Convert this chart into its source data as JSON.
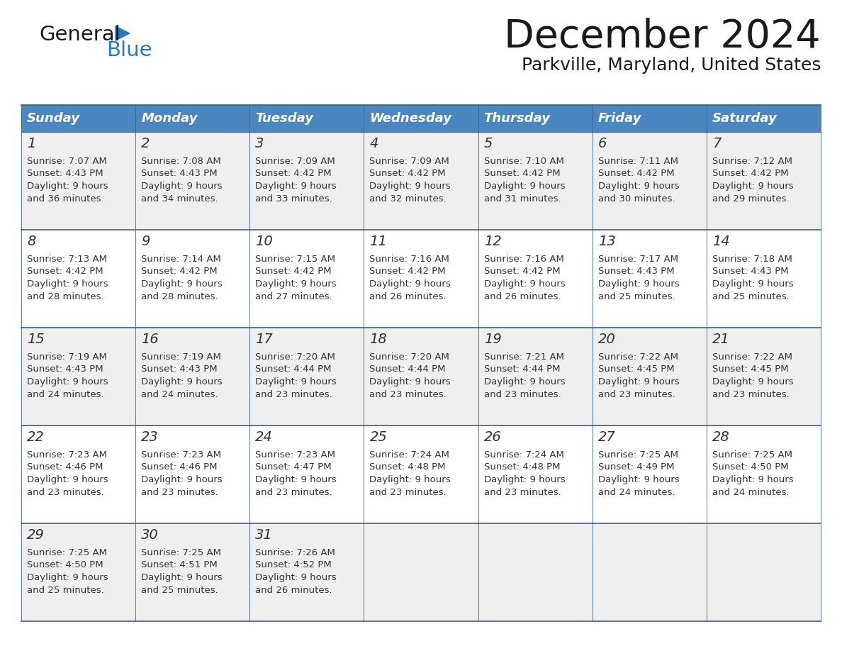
{
  "title": "December 2024",
  "subtitle": "Parkville, Maryland, United States",
  "days_of_week": [
    "Sunday",
    "Monday",
    "Tuesday",
    "Wednesday",
    "Thursday",
    "Friday",
    "Saturday"
  ],
  "header_bg": "#4a86c0",
  "header_text_color": "#FFFFFF",
  "cell_bg_odd_row": "#EFEFEF",
  "cell_bg_even_row": "#FFFFFF",
  "grid_line_color": "#3a6090",
  "text_color": "#333333",
  "title_color": "#1a1a1a",
  "calendar_data": [
    [
      {
        "day": 1,
        "sunrise": "7:07 AM",
        "sunset": "4:43 PM",
        "daylight1": "9 hours",
        "daylight2": "and 36 minutes."
      },
      {
        "day": 2,
        "sunrise": "7:08 AM",
        "sunset": "4:43 PM",
        "daylight1": "9 hours",
        "daylight2": "and 34 minutes."
      },
      {
        "day": 3,
        "sunrise": "7:09 AM",
        "sunset": "4:42 PM",
        "daylight1": "9 hours",
        "daylight2": "and 33 minutes."
      },
      {
        "day": 4,
        "sunrise": "7:09 AM",
        "sunset": "4:42 PM",
        "daylight1": "9 hours",
        "daylight2": "and 32 minutes."
      },
      {
        "day": 5,
        "sunrise": "7:10 AM",
        "sunset": "4:42 PM",
        "daylight1": "9 hours",
        "daylight2": "and 31 minutes."
      },
      {
        "day": 6,
        "sunrise": "7:11 AM",
        "sunset": "4:42 PM",
        "daylight1": "9 hours",
        "daylight2": "and 30 minutes."
      },
      {
        "day": 7,
        "sunrise": "7:12 AM",
        "sunset": "4:42 PM",
        "daylight1": "9 hours",
        "daylight2": "and 29 minutes."
      }
    ],
    [
      {
        "day": 8,
        "sunrise": "7:13 AM",
        "sunset": "4:42 PM",
        "daylight1": "9 hours",
        "daylight2": "and 28 minutes."
      },
      {
        "day": 9,
        "sunrise": "7:14 AM",
        "sunset": "4:42 PM",
        "daylight1": "9 hours",
        "daylight2": "and 28 minutes."
      },
      {
        "day": 10,
        "sunrise": "7:15 AM",
        "sunset": "4:42 PM",
        "daylight1": "9 hours",
        "daylight2": "and 27 minutes."
      },
      {
        "day": 11,
        "sunrise": "7:16 AM",
        "sunset": "4:42 PM",
        "daylight1": "9 hours",
        "daylight2": "and 26 minutes."
      },
      {
        "day": 12,
        "sunrise": "7:16 AM",
        "sunset": "4:42 PM",
        "daylight1": "9 hours",
        "daylight2": "and 26 minutes."
      },
      {
        "day": 13,
        "sunrise": "7:17 AM",
        "sunset": "4:43 PM",
        "daylight1": "9 hours",
        "daylight2": "and 25 minutes."
      },
      {
        "day": 14,
        "sunrise": "7:18 AM",
        "sunset": "4:43 PM",
        "daylight1": "9 hours",
        "daylight2": "and 25 minutes."
      }
    ],
    [
      {
        "day": 15,
        "sunrise": "7:19 AM",
        "sunset": "4:43 PM",
        "daylight1": "9 hours",
        "daylight2": "and 24 minutes."
      },
      {
        "day": 16,
        "sunrise": "7:19 AM",
        "sunset": "4:43 PM",
        "daylight1": "9 hours",
        "daylight2": "and 24 minutes."
      },
      {
        "day": 17,
        "sunrise": "7:20 AM",
        "sunset": "4:44 PM",
        "daylight1": "9 hours",
        "daylight2": "and 23 minutes."
      },
      {
        "day": 18,
        "sunrise": "7:20 AM",
        "sunset": "4:44 PM",
        "daylight1": "9 hours",
        "daylight2": "and 23 minutes."
      },
      {
        "day": 19,
        "sunrise": "7:21 AM",
        "sunset": "4:44 PM",
        "daylight1": "9 hours",
        "daylight2": "and 23 minutes."
      },
      {
        "day": 20,
        "sunrise": "7:22 AM",
        "sunset": "4:45 PM",
        "daylight1": "9 hours",
        "daylight2": "and 23 minutes."
      },
      {
        "day": 21,
        "sunrise": "7:22 AM",
        "sunset": "4:45 PM",
        "daylight1": "9 hours",
        "daylight2": "and 23 minutes."
      }
    ],
    [
      {
        "day": 22,
        "sunrise": "7:23 AM",
        "sunset": "4:46 PM",
        "daylight1": "9 hours",
        "daylight2": "and 23 minutes."
      },
      {
        "day": 23,
        "sunrise": "7:23 AM",
        "sunset": "4:46 PM",
        "daylight1": "9 hours",
        "daylight2": "and 23 minutes."
      },
      {
        "day": 24,
        "sunrise": "7:23 AM",
        "sunset": "4:47 PM",
        "daylight1": "9 hours",
        "daylight2": "and 23 minutes."
      },
      {
        "day": 25,
        "sunrise": "7:24 AM",
        "sunset": "4:48 PM",
        "daylight1": "9 hours",
        "daylight2": "and 23 minutes."
      },
      {
        "day": 26,
        "sunrise": "7:24 AM",
        "sunset": "4:48 PM",
        "daylight1": "9 hours",
        "daylight2": "and 23 minutes."
      },
      {
        "day": 27,
        "sunrise": "7:25 AM",
        "sunset": "4:49 PM",
        "daylight1": "9 hours",
        "daylight2": "and 24 minutes."
      },
      {
        "day": 28,
        "sunrise": "7:25 AM",
        "sunset": "4:50 PM",
        "daylight1": "9 hours",
        "daylight2": "and 24 minutes."
      }
    ],
    [
      {
        "day": 29,
        "sunrise": "7:25 AM",
        "sunset": "4:50 PM",
        "daylight1": "9 hours",
        "daylight2": "and 25 minutes."
      },
      {
        "day": 30,
        "sunrise": "7:25 AM",
        "sunset": "4:51 PM",
        "daylight1": "9 hours",
        "daylight2": "and 25 minutes."
      },
      {
        "day": 31,
        "sunrise": "7:26 AM",
        "sunset": "4:52 PM",
        "daylight1": "9 hours",
        "daylight2": "and 26 minutes."
      },
      null,
      null,
      null,
      null
    ]
  ],
  "logo_general_color": "#1a1a1a",
  "logo_blue_color": "#2878C8",
  "logo_triangle_color": "#2878C8",
  "fig_width": 11.88,
  "fig_height": 9.18,
  "dpi": 100
}
